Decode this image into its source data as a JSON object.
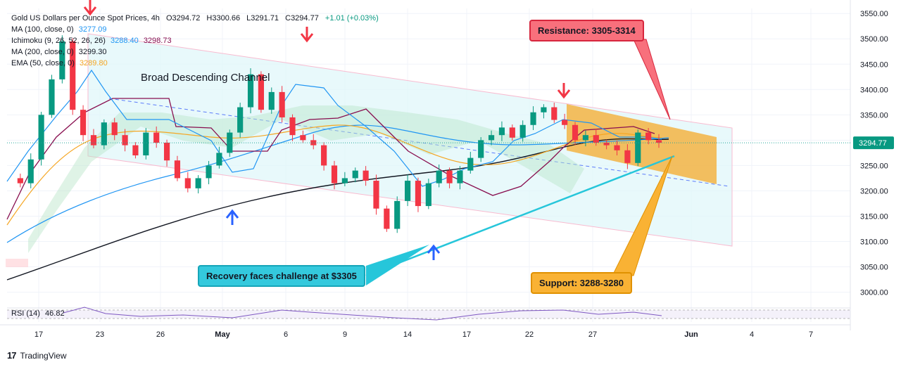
{
  "header": {
    "symbol": "Gold US Dollars per Ounce Spot Prices, 4h",
    "open": "O3294.72",
    "high": "H3300.66",
    "low": "L3291.71",
    "close": "C3294.77",
    "change": "+1.01 (+0.03%)"
  },
  "indicators": [
    {
      "label": "MA (100, close, 0)",
      "value": "3277.09",
      "value2": "",
      "color": "#2196f3"
    },
    {
      "label": "Ichimoku (9, 26, 52, 26, 26)",
      "value": "3288.40",
      "value2": "3298.73",
      "color": "#2196f3",
      "color2": "#880e4f"
    },
    {
      "label": "MA (200, close, 0)",
      "value": "3299.30",
      "value2": "",
      "color": "#131722"
    },
    {
      "label": "EMA (50, close, 0)",
      "value": "3289.80",
      "value2": "",
      "color": "#f5a623"
    }
  ],
  "rsi": {
    "label": "RSI (14)",
    "value": "46.82"
  },
  "price_label": "3294.77",
  "annotations": {
    "resistance": "Resistance: 3305-3314",
    "support": "Support: 3288-3280",
    "recovery": "Recovery faces challenge at $3305",
    "channel": "Broad Descending Channel"
  },
  "branding": "TradingView",
  "colors": {
    "up": "#089981",
    "down": "#f23645",
    "resistance_box": "#f23645",
    "support_box": "#f5a623",
    "recovery_box": "#26c6da",
    "channel_fill": "#e0f7fa",
    "arrow_down": "#f23645",
    "arrow_up": "#2962ff"
  },
  "chart_data": {
    "type": "candlestick",
    "timeframe": "4h",
    "x_tick_labels": [
      "17",
      "23",
      "26",
      "May",
      "6",
      "9",
      "14",
      "17",
      "22",
      "27",
      "Jun",
      "4",
      "7"
    ],
    "y_tick_labels": [
      "3550.00",
      "3500.00",
      "3450.00",
      "3400.00",
      "3350.00",
      "3300.00",
      "3250.00",
      "3200.00",
      "3150.00",
      "3100.00",
      "3050.00",
      "3000.00"
    ],
    "ylim": [
      2980,
      3560
    ],
    "last_price": 3294.77,
    "close_path": [
      3225,
      3215,
      3262,
      3350,
      3420,
      3495,
      3360,
      3310,
      3290,
      3335,
      3310,
      3290,
      3270,
      3315,
      3295,
      3260,
      3225,
      3205,
      3225,
      3250,
      3275,
      3315,
      3365,
      3430,
      3360,
      3395,
      3345,
      3310,
      3300,
      3290,
      3250,
      3215,
      3225,
      3240,
      3220,
      3165,
      3125,
      3180,
      3220,
      3170,
      3215,
      3240,
      3215,
      3240,
      3265,
      3300,
      3310,
      3325,
      3305,
      3330,
      3355,
      3365,
      3340,
      3330,
      3300,
      3310,
      3295,
      3290,
      3280,
      3255,
      3315,
      3300,
      3295
    ],
    "resistance_zone": [
      3305,
      3314
    ],
    "support_zone": [
      3280,
      3288
    ],
    "rsi_value": 46.82
  }
}
